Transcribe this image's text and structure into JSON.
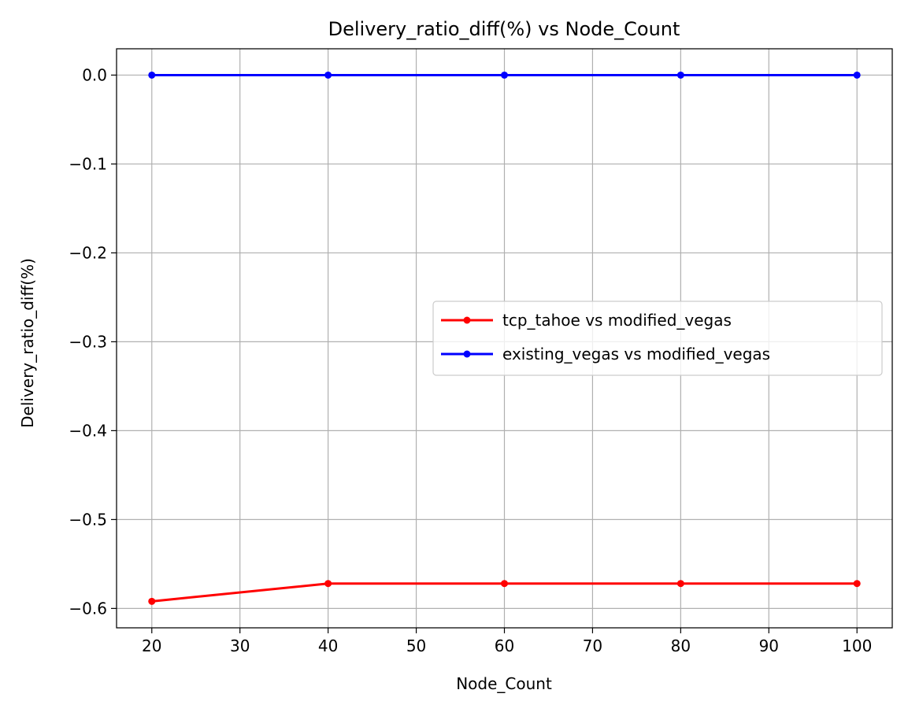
{
  "chart_data": {
    "type": "line",
    "title": "Delivery_ratio_diff(%) vs Node_Count",
    "xlabel": "Node_Count",
    "ylabel": "Delivery_ratio_diff(%)",
    "x": [
      20,
      40,
      60,
      80,
      100
    ],
    "xlim": [
      16,
      104
    ],
    "ylim": [
      -0.6218,
      0.0296
    ],
    "xticks": [
      20,
      30,
      40,
      50,
      60,
      70,
      80,
      90,
      100
    ],
    "yticks": [
      0.0,
      -0.1,
      -0.2,
      -0.3,
      -0.4,
      -0.5,
      -0.6
    ],
    "xtick_labels": [
      "20",
      "30",
      "40",
      "50",
      "60",
      "70",
      "80",
      "90",
      "100"
    ],
    "ytick_labels": [
      "0.0",
      "−0.1",
      "−0.2",
      "−0.3",
      "−0.4",
      "−0.5",
      "−0.6"
    ],
    "grid": true,
    "legend_position": "center-right",
    "series": [
      {
        "name": "tcp_tahoe vs modified_vegas",
        "color": "#ff0000",
        "marker": "circle",
        "values": [
          -0.592,
          -0.572,
          -0.572,
          -0.572,
          -0.572
        ]
      },
      {
        "name": "existing_vegas vs modified_vegas",
        "color": "#0000ff",
        "marker": "circle",
        "values": [
          0.0,
          0.0,
          0.0,
          0.0,
          0.0
        ]
      }
    ]
  }
}
